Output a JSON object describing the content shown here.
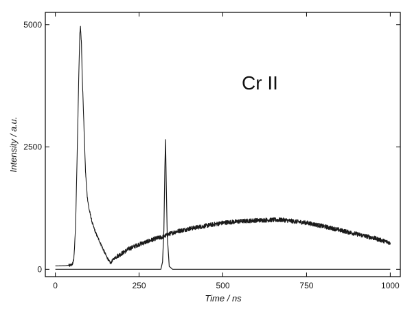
{
  "chart_data": {
    "type": "line",
    "title": "",
    "xlabel": "Time / ns",
    "ylabel": "Intensity / a.u.",
    "xlim": [
      -30,
      1030
    ],
    "ylim": [
      -150,
      5250
    ],
    "x_ticks": [
      0,
      250,
      500,
      750,
      1000
    ],
    "y_ticks": [
      0,
      2500,
      5000
    ],
    "grid": false,
    "legend": "none",
    "annotation": "Cr II",
    "colors": {
      "line": "#1a1a1a",
      "axis": "#000000"
    },
    "series": [
      {
        "x": [
          0,
          30,
          50,
          55,
          60,
          65,
          70,
          73,
          75,
          78,
          80,
          85,
          90,
          95,
          100,
          110,
          120,
          130,
          140,
          150,
          160,
          165,
          170,
          180,
          200,
          220,
          250,
          280,
          300,
          320,
          330,
          340,
          360,
          400,
          450,
          500,
          550,
          600,
          650,
          680,
          700,
          750,
          800,
          850,
          900,
          950,
          980,
          1000
        ],
        "values": [
          70,
          75,
          90,
          200,
          800,
          2300,
          4000,
          4800,
          4950,
          4600,
          4000,
          3000,
          2000,
          1500,
          1250,
          950,
          750,
          600,
          450,
          300,
          170,
          120,
          180,
          250,
          330,
          420,
          510,
          580,
          630,
          660,
          690,
          720,
          770,
          830,
          890,
          950,
          980,
          1000,
          1010,
          1010,
          990,
          950,
          880,
          800,
          720,
          640,
          580,
          540
        ],
        "noise": 45
      },
      {
        "x": [
          0,
          300,
          315,
          320,
          324,
          327,
          329,
          331,
          334,
          340,
          350,
          400,
          1000
        ],
        "values": [
          0,
          0,
          0,
          150,
          800,
          2100,
          2650,
          1800,
          700,
          60,
          0,
          0,
          0
        ],
        "noise": 0
      }
    ]
  }
}
